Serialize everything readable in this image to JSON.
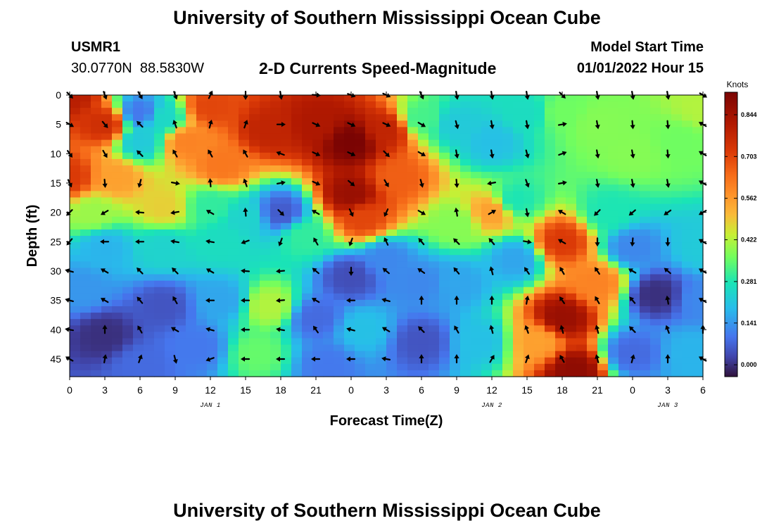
{
  "header": {
    "title": "University of Southern Mississippi Ocean Cube",
    "station_id": "USMR1",
    "station_coords": "30.0770N  88.5830W",
    "subtitle": "2-D Currents Speed-Magnitude",
    "model_start_label": "Model Start Time",
    "model_start_value": "01/01/2022 Hour 15"
  },
  "footer": {
    "title": "University of Southern Mississippi Ocean Cube"
  },
  "chart_data": {
    "type": "heatmap",
    "title": "2-D Currents Speed-Magnitude",
    "xlabel": "Forecast Time(Z)",
    "ylabel": "Depth (ft)",
    "x_tick_labels": [
      "0",
      "3",
      "6",
      "9",
      "12",
      "15",
      "18",
      "21",
      "0",
      "3",
      "6",
      "9",
      "12",
      "15",
      "18",
      "21",
      "0",
      "3",
      "6"
    ],
    "x_hours": [
      0,
      3,
      6,
      9,
      12,
      15,
      18,
      21,
      24,
      27,
      30,
      33,
      36,
      39,
      42,
      45,
      48,
      51,
      54
    ],
    "date_labels": [
      {
        "text": "JAN 1",
        "hour": 12
      },
      {
        "text": "JAN 2",
        "hour": 36
      },
      {
        "text": "JAN 3",
        "hour": 51
      }
    ],
    "y_ticks": [
      0,
      5,
      10,
      15,
      20,
      25,
      30,
      35,
      40,
      45
    ],
    "ylim": [
      0,
      48
    ],
    "xlim": [
      0,
      54
    ],
    "colorbar": {
      "unit": "Knots",
      "ticks": [
        0.0,
        0.141,
        0.281,
        0.422,
        0.562,
        0.703,
        0.844
      ],
      "tick_labels": [
        "0.000",
        "0.141",
        "0.281",
        "0.422",
        "0.562",
        "0.703",
        "0.844"
      ],
      "range": [
        -0.04,
        0.92
      ]
    },
    "speed_field_knots": [
      {
        "hour": 0,
        "depth_ft": 0,
        "speed": 0.8
      },
      {
        "hour": 3,
        "depth_ft": 5,
        "speed": 0.75
      },
      {
        "hour": 0,
        "depth_ft": 14,
        "speed": 0.72
      },
      {
        "hour": 4,
        "depth_ft": 14,
        "speed": 0.55
      },
      {
        "hour": 6,
        "depth_ft": 3,
        "speed": 0.1
      },
      {
        "hour": 6,
        "depth_ft": 8,
        "speed": 0.22
      },
      {
        "hour": 8,
        "depth_ft": 4,
        "speed": 0.25
      },
      {
        "hour": 10,
        "depth_ft": 8,
        "speed": 0.6
      },
      {
        "hour": 12,
        "depth_ft": 2,
        "speed": 0.7
      },
      {
        "hour": 13,
        "depth_ft": 12,
        "speed": 0.62
      },
      {
        "hour": 17,
        "depth_ft": 6,
        "speed": 0.78
      },
      {
        "hour": 21,
        "depth_ft": 5,
        "speed": 0.82
      },
      {
        "hour": 24,
        "depth_ft": 8,
        "speed": 0.92
      },
      {
        "hour": 24,
        "depth_ft": 17,
        "speed": 0.86
      },
      {
        "hour": 27,
        "depth_ft": 6,
        "speed": 0.78
      },
      {
        "hour": 25,
        "depth_ft": 21,
        "speed": 0.7
      },
      {
        "hour": 28,
        "depth_ft": 14,
        "speed": 0.66
      },
      {
        "hour": 30,
        "depth_ft": 4,
        "speed": 0.32
      },
      {
        "hour": 33,
        "depth_ft": 5,
        "speed": 0.22
      },
      {
        "hour": 36,
        "depth_ft": 8,
        "speed": 0.2
      },
      {
        "hour": 39,
        "depth_ft": 3,
        "speed": 0.26
      },
      {
        "hour": 42,
        "depth_ft": 3,
        "speed": 0.36
      },
      {
        "hour": 45,
        "depth_ft": 5,
        "speed": 0.38
      },
      {
        "hour": 48,
        "depth_ft": 10,
        "speed": 0.38
      },
      {
        "hour": 52,
        "depth_ft": 8,
        "speed": 0.36
      },
      {
        "hour": 54,
        "depth_ft": 2,
        "speed": 0.42
      },
      {
        "hour": 38,
        "depth_ft": 18,
        "speed": 0.28
      },
      {
        "hour": 36,
        "depth_ft": 20,
        "speed": 0.55
      },
      {
        "hour": 33,
        "depth_ft": 22,
        "speed": 0.38
      },
      {
        "hour": 2,
        "depth_ft": 20,
        "speed": 0.4
      },
      {
        "hour": 8,
        "depth_ft": 19,
        "speed": 0.48
      },
      {
        "hour": 12,
        "depth_ft": 19,
        "speed": 0.3
      },
      {
        "hour": 18,
        "depth_ft": 20,
        "speed": 0.06
      },
      {
        "hour": 15,
        "depth_ft": 21,
        "speed": 0.24
      },
      {
        "hour": 20,
        "depth_ft": 24,
        "speed": 0.3
      },
      {
        "hour": 3,
        "depth_ft": 26,
        "speed": 0.18
      },
      {
        "hour": 8,
        "depth_ft": 26,
        "speed": 0.24
      },
      {
        "hour": 13,
        "depth_ft": 25,
        "speed": 0.26
      },
      {
        "hour": 17,
        "depth_ft": 36,
        "speed": 0.42
      },
      {
        "hour": 16,
        "depth_ft": 44,
        "speed": 0.35
      },
      {
        "hour": 13,
        "depth_ft": 35,
        "speed": 0.16
      },
      {
        "hour": 3,
        "depth_ft": 41,
        "speed": 0.0
      },
      {
        "hour": 1,
        "depth_ft": 33,
        "speed": 0.14
      },
      {
        "hour": 8,
        "depth_ft": 36,
        "speed": 0.05
      },
      {
        "hour": 11,
        "depth_ft": 43,
        "speed": 0.1
      },
      {
        "hour": 6,
        "depth_ft": 46,
        "speed": 0.08
      },
      {
        "hour": 21,
        "depth_ft": 38,
        "speed": 0.08
      },
      {
        "hour": 22,
        "depth_ft": 46,
        "speed": 0.1
      },
      {
        "hour": 24,
        "depth_ft": 31,
        "speed": 0.04
      },
      {
        "hour": 27,
        "depth_ft": 28,
        "speed": 0.12
      },
      {
        "hour": 25,
        "depth_ft": 40,
        "speed": 0.2
      },
      {
        "hour": 30,
        "depth_ft": 42,
        "speed": 0.05
      },
      {
        "hour": 30,
        "depth_ft": 32,
        "speed": 0.12
      },
      {
        "hour": 33,
        "depth_ft": 32,
        "speed": 0.16
      },
      {
        "hour": 35,
        "depth_ft": 42,
        "speed": 0.2
      },
      {
        "hour": 38,
        "depth_ft": 28,
        "speed": 0.16
      },
      {
        "hour": 40,
        "depth_ft": 42,
        "speed": 0.55
      },
      {
        "hour": 42,
        "depth_ft": 25,
        "speed": 0.72
      },
      {
        "hour": 42,
        "depth_ft": 38,
        "speed": 0.86
      },
      {
        "hour": 43,
        "depth_ft": 47,
        "speed": 0.88
      },
      {
        "hour": 45,
        "depth_ft": 32,
        "speed": 0.6
      },
      {
        "hour": 46,
        "depth_ft": 20,
        "speed": 0.28
      },
      {
        "hour": 48,
        "depth_ft": 26,
        "speed": 0.12
      },
      {
        "hour": 50,
        "depth_ft": 34,
        "speed": 0.0
      },
      {
        "hour": 48,
        "depth_ft": 44,
        "speed": 0.08
      },
      {
        "hour": 53,
        "depth_ft": 44,
        "speed": 0.18
      },
      {
        "hour": 54,
        "depth_ft": 26,
        "speed": 0.22
      },
      {
        "hour": 54,
        "depth_ft": 35,
        "speed": 0.12
      }
    ],
    "direction_vectors_deg_clockwise_from_north": [
      [
        135,
        160,
        150,
        160,
        25,
        180,
        170,
        95,
        110,
        115,
        155,
        170,
        170,
        170,
        135,
        170,
        170,
        170,
        120
      ],
      [
        120,
        140,
        315,
        340,
        15,
        20,
        90,
        115,
        115,
        115,
        120,
        165,
        170,
        170,
        80,
        170,
        175,
        175,
        300
      ],
      [
        145,
        150,
        315,
        330,
        330,
        330,
        290,
        115,
        115,
        135,
        120,
        170,
        170,
        165,
        70,
        170,
        170,
        175,
        300
      ],
      [
        155,
        175,
        195,
        100,
        355,
        340,
        80,
        115,
        130,
        150,
        165,
        175,
        260,
        160,
        80,
        170,
        170,
        170,
        300
      ],
      [
        225,
        240,
        275,
        260,
        300,
        355,
        135,
        300,
        155,
        205,
        120,
        350,
        60,
        170,
        300,
        225,
        230,
        235,
        240
      ],
      [
        220,
        270,
        270,
        280,
        280,
        250,
        200,
        330,
        200,
        335,
        320,
        315,
        320,
        100,
        300,
        180,
        185,
        180,
        300
      ],
      [
        285,
        300,
        315,
        315,
        300,
        275,
        265,
        310,
        180,
        310,
        305,
        320,
        345,
        325,
        330,
        325,
        300,
        310,
        300
      ],
      [
        285,
        300,
        320,
        330,
        270,
        270,
        265,
        300,
        270,
        285,
        0,
        0,
        0,
        10,
        325,
        330,
        320,
        350,
        300
      ],
      [
        280,
        0,
        330,
        300,
        285,
        270,
        280,
        325,
        285,
        300,
        315,
        330,
        345,
        340,
        345,
        345,
        315,
        340,
        0
      ],
      [
        300,
        10,
        20,
        165,
        250,
        270,
        270,
        270,
        270,
        280,
        0,
        0,
        30,
        20,
        330,
        345,
        15,
        0,
        300
      ]
    ]
  }
}
